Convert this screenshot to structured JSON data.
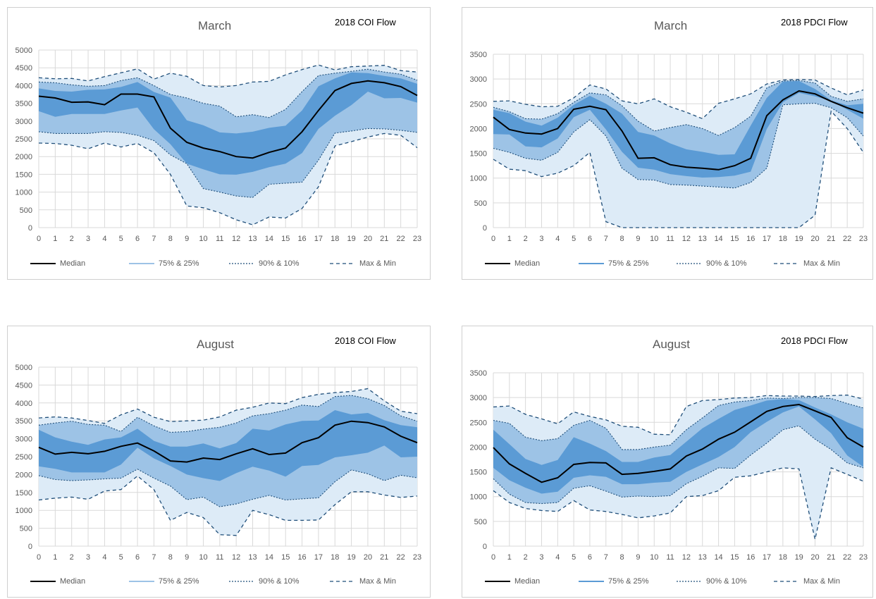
{
  "legend": {
    "median": "Median",
    "quartiles": "75% & 25%",
    "deciles": "90% & 10%",
    "extremes": "Max & Min"
  },
  "colors": {
    "median": "#000000",
    "quartile_fill": "#9dc3e6",
    "decile_fill": "#9dc3e6",
    "extreme_fill": "#ddebf7",
    "inner_fill": "#5b9bd5",
    "dashed_line": "#1f4e79",
    "grid": "#d9d9d9",
    "legend_band_line": "#9dc3e6",
    "legend_quartile_line": "#5b9bd5"
  },
  "chart_data": [
    {
      "type": "area",
      "title": "March",
      "subtitle": "2018 COI Flow",
      "x": [
        0,
        1,
        2,
        3,
        4,
        5,
        6,
        7,
        8,
        9,
        10,
        11,
        12,
        13,
        14,
        15,
        16,
        17,
        18,
        19,
        20,
        21,
        22,
        23
      ],
      "ylim": [
        0,
        5000
      ],
      "yticks": [
        0,
        500,
        1000,
        1500,
        2000,
        2500,
        3000,
        3500,
        4000,
        4500,
        5000
      ],
      "grid": true,
      "legend_position": "bottom",
      "series": [
        {
          "name": "Max",
          "values": [
            4220,
            4190,
            4200,
            4130,
            4250,
            4360,
            4470,
            4180,
            4350,
            4260,
            4000,
            3960,
            4000,
            4100,
            4120,
            4300,
            4450,
            4580,
            4440,
            4530,
            4550,
            4570,
            4420,
            4380
          ]
        },
        {
          "name": "90%",
          "values": [
            4100,
            4080,
            4020,
            3980,
            4000,
            4140,
            4220,
            4000,
            3750,
            3650,
            3500,
            3420,
            3120,
            3180,
            3100,
            3330,
            3830,
            4280,
            4350,
            4400,
            4460,
            4380,
            4320,
            4150
          ]
        },
        {
          "name": "75%",
          "values": [
            3920,
            3850,
            3830,
            3880,
            3890,
            3960,
            4100,
            3820,
            3660,
            3020,
            2880,
            2680,
            2650,
            2700,
            2810,
            2870,
            3300,
            3980,
            4200,
            4370,
            4350,
            4270,
            4200,
            4050
          ]
        },
        {
          "name": "Median",
          "values": [
            3700,
            3650,
            3530,
            3540,
            3460,
            3760,
            3760,
            3680,
            2800,
            2400,
            2240,
            2140,
            2000,
            1960,
            2120,
            2240,
            2700,
            3300,
            3860,
            4060,
            4130,
            4080,
            3970,
            3720
          ]
        },
        {
          "name": "25%",
          "values": [
            3280,
            3120,
            3200,
            3200,
            3200,
            3300,
            3380,
            2770,
            2350,
            1800,
            1640,
            1500,
            1490,
            1570,
            1700,
            1800,
            2100,
            2780,
            3150,
            3450,
            3830,
            3640,
            3650,
            3520
          ]
        },
        {
          "name": "10%",
          "values": [
            2700,
            2650,
            2650,
            2650,
            2700,
            2680,
            2600,
            2450,
            2050,
            1800,
            1100,
            1000,
            890,
            850,
            1220,
            1250,
            1280,
            1900,
            2660,
            2720,
            2790,
            2780,
            2740,
            2680
          ]
        },
        {
          "name": "Min",
          "values": [
            2380,
            2370,
            2320,
            2220,
            2380,
            2270,
            2370,
            2110,
            1500,
            610,
            560,
            420,
            220,
            80,
            300,
            270,
            540,
            1150,
            2300,
            2420,
            2550,
            2650,
            2600,
            2250
          ]
        }
      ]
    },
    {
      "type": "area",
      "title": "March",
      "subtitle": "2018 PDCI Flow",
      "x": [
        0,
        1,
        2,
        3,
        4,
        5,
        6,
        7,
        8,
        9,
        10,
        11,
        12,
        13,
        14,
        15,
        16,
        17,
        18,
        19,
        20,
        21,
        22,
        23
      ],
      "ylim": [
        0,
        3500
      ],
      "yticks": [
        0,
        500,
        1000,
        1500,
        2000,
        2500,
        3000,
        3500
      ],
      "grid": true,
      "legend_position": "bottom",
      "series": [
        {
          "name": "Max",
          "values": [
            2550,
            2560,
            2490,
            2440,
            2450,
            2620,
            2880,
            2800,
            2560,
            2500,
            2600,
            2440,
            2330,
            2200,
            2510,
            2600,
            2700,
            2900,
            2980,
            2990,
            2980,
            2820,
            2680,
            2780
          ]
        },
        {
          "name": "90%",
          "values": [
            2430,
            2340,
            2200,
            2190,
            2300,
            2530,
            2720,
            2680,
            2460,
            2150,
            1950,
            2020,
            2080,
            2000,
            1860,
            2020,
            2250,
            2820,
            2960,
            2970,
            2920,
            2650,
            2550,
            2600
          ]
        },
        {
          "name": "75%",
          "values": [
            2380,
            2310,
            2140,
            2060,
            2220,
            2480,
            2660,
            2500,
            2300,
            1930,
            1860,
            1700,
            1580,
            1530,
            1470,
            1480,
            2060,
            2620,
            2950,
            2960,
            2800,
            2570,
            2470,
            2500
          ]
        },
        {
          "name": "Median",
          "values": [
            2230,
            1980,
            1910,
            1890,
            2000,
            2390,
            2450,
            2380,
            1950,
            1400,
            1410,
            1270,
            1220,
            1200,
            1170,
            1250,
            1400,
            2260,
            2580,
            2760,
            2700,
            2550,
            2420,
            2310
          ]
        },
        {
          "name": "25%",
          "values": [
            1890,
            1880,
            1640,
            1620,
            1800,
            2230,
            2380,
            1980,
            1530,
            1210,
            1170,
            1080,
            1040,
            1010,
            1020,
            1050,
            1130,
            1990,
            2530,
            2720,
            2650,
            2560,
            2380,
            2200
          ]
        },
        {
          "name": "10%",
          "values": [
            1600,
            1520,
            1400,
            1360,
            1520,
            1930,
            2180,
            1850,
            1200,
            970,
            960,
            870,
            860,
            840,
            820,
            800,
            910,
            1200,
            2480,
            2500,
            2510,
            2420,
            2220,
            1850
          ]
        },
        {
          "name": "Min",
          "values": [
            1380,
            1180,
            1150,
            1030,
            1100,
            1250,
            1520,
            120,
            0,
            0,
            0,
            0,
            0,
            0,
            0,
            0,
            0,
            0,
            0,
            0,
            250,
            2350,
            2000,
            1520
          ]
        }
      ]
    },
    {
      "type": "area",
      "title": "August",
      "subtitle": "2018 COI Flow",
      "x": [
        0,
        1,
        2,
        3,
        4,
        5,
        6,
        7,
        8,
        9,
        10,
        11,
        12,
        13,
        14,
        15,
        16,
        17,
        18,
        19,
        20,
        21,
        22,
        23
      ],
      "ylim": [
        0,
        5000
      ],
      "yticks": [
        0,
        500,
        1000,
        1500,
        2000,
        2500,
        3000,
        3500,
        4000,
        4500,
        5000
      ],
      "grid": true,
      "legend_position": "bottom",
      "series": [
        {
          "name": "Max",
          "values": [
            3580,
            3610,
            3580,
            3510,
            3430,
            3670,
            3830,
            3600,
            3480,
            3500,
            3520,
            3610,
            3800,
            3880,
            4000,
            3980,
            4150,
            4240,
            4290,
            4320,
            4400,
            4060,
            3770,
            3700
          ]
        },
        {
          "name": "90%",
          "values": [
            3380,
            3440,
            3490,
            3400,
            3380,
            3200,
            3600,
            3360,
            3180,
            3200,
            3270,
            3320,
            3440,
            3640,
            3700,
            3800,
            3940,
            3900,
            4180,
            4210,
            4120,
            3930,
            3640,
            3490
          ]
        },
        {
          "name": "75%",
          "values": [
            3250,
            3040,
            2920,
            2830,
            2980,
            3040,
            3280,
            2940,
            2780,
            2780,
            2870,
            2730,
            2880,
            3280,
            3230,
            3400,
            3500,
            3510,
            3800,
            3680,
            3720,
            3520,
            3380,
            3320
          ]
        },
        {
          "name": "Median",
          "values": [
            2760,
            2570,
            2620,
            2580,
            2650,
            2790,
            2880,
            2660,
            2380,
            2350,
            2460,
            2420,
            2580,
            2720,
            2560,
            2600,
            2890,
            3030,
            3380,
            3490,
            3450,
            3330,
            3070,
            2890
          ]
        },
        {
          "name": "25%",
          "values": [
            2230,
            2160,
            2060,
            2060,
            2060,
            2280,
            2750,
            2450,
            2240,
            2000,
            1900,
            1820,
            2040,
            2220,
            2110,
            1940,
            2240,
            2270,
            2480,
            2540,
            2610,
            2810,
            2480,
            2500
          ]
        },
        {
          "name": "10%",
          "values": [
            1970,
            1860,
            1830,
            1850,
            1880,
            1900,
            2150,
            1900,
            1680,
            1300,
            1370,
            1100,
            1180,
            1310,
            1420,
            1290,
            1320,
            1350,
            1800,
            2130,
            2020,
            1830,
            1980,
            1910
          ]
        },
        {
          "name": "Min",
          "values": [
            1290,
            1340,
            1370,
            1310,
            1540,
            1580,
            1960,
            1580,
            720,
            940,
            800,
            320,
            300,
            1000,
            880,
            720,
            720,
            730,
            1160,
            1520,
            1520,
            1430,
            1360,
            1400
          ]
        }
      ]
    },
    {
      "type": "area",
      "title": "August",
      "subtitle": "2018 PDCI Flow",
      "x": [
        0,
        1,
        2,
        3,
        4,
        5,
        6,
        7,
        8,
        9,
        10,
        11,
        12,
        13,
        14,
        15,
        16,
        17,
        18,
        19,
        20,
        21,
        22,
        23
      ],
      "ylim": [
        0,
        3500
      ],
      "yticks": [
        0,
        500,
        1000,
        1500,
        2000,
        2500,
        3000,
        3500
      ],
      "grid": true,
      "legend_position": "bottom",
      "series": [
        {
          "name": "Max",
          "values": [
            2810,
            2830,
            2660,
            2570,
            2470,
            2710,
            2620,
            2550,
            2420,
            2400,
            2260,
            2250,
            2820,
            2940,
            2960,
            2990,
            3000,
            3040,
            3030,
            3030,
            3020,
            3040,
            3050,
            2970
          ]
        },
        {
          "name": "90%",
          "values": [
            2540,
            2480,
            2200,
            2130,
            2170,
            2440,
            2540,
            2380,
            1950,
            1950,
            2000,
            2040,
            2350,
            2590,
            2840,
            2910,
            2940,
            2990,
            2980,
            3000,
            3000,
            2980,
            2880,
            2790
          ]
        },
        {
          "name": "75%",
          "values": [
            2350,
            2060,
            1760,
            1640,
            1740,
            2200,
            2070,
            1920,
            1700,
            1700,
            1790,
            1840,
            2110,
            2380,
            2570,
            2750,
            2840,
            2940,
            2970,
            2950,
            2800,
            2660,
            2500,
            2370
          ]
        },
        {
          "name": "Median",
          "values": [
            1990,
            1660,
            1470,
            1290,
            1380,
            1650,
            1690,
            1680,
            1450,
            1470,
            1510,
            1560,
            1820,
            1960,
            2160,
            2300,
            2510,
            2720,
            2820,
            2860,
            2730,
            2600,
            2190,
            2000
          ]
        },
        {
          "name": "25%",
          "values": [
            1580,
            1330,
            1180,
            1060,
            1100,
            1380,
            1430,
            1400,
            1250,
            1250,
            1280,
            1300,
            1500,
            1650,
            1800,
            2000,
            2300,
            2510,
            2700,
            2820,
            2560,
            2280,
            1830,
            1600
          ]
        },
        {
          "name": "10%",
          "values": [
            1360,
            1050,
            880,
            860,
            880,
            1170,
            1220,
            1110,
            990,
            1010,
            1000,
            1020,
            1260,
            1410,
            1580,
            1570,
            1840,
            2080,
            2350,
            2430,
            2160,
            1950,
            1680,
            1580
          ]
        },
        {
          "name": "Min",
          "values": [
            1120,
            880,
            760,
            720,
            700,
            920,
            730,
            700,
            640,
            570,
            610,
            670,
            1000,
            1020,
            1120,
            1390,
            1420,
            1500,
            1580,
            1560,
            140,
            1580,
            1450,
            1310
          ]
        }
      ]
    }
  ]
}
